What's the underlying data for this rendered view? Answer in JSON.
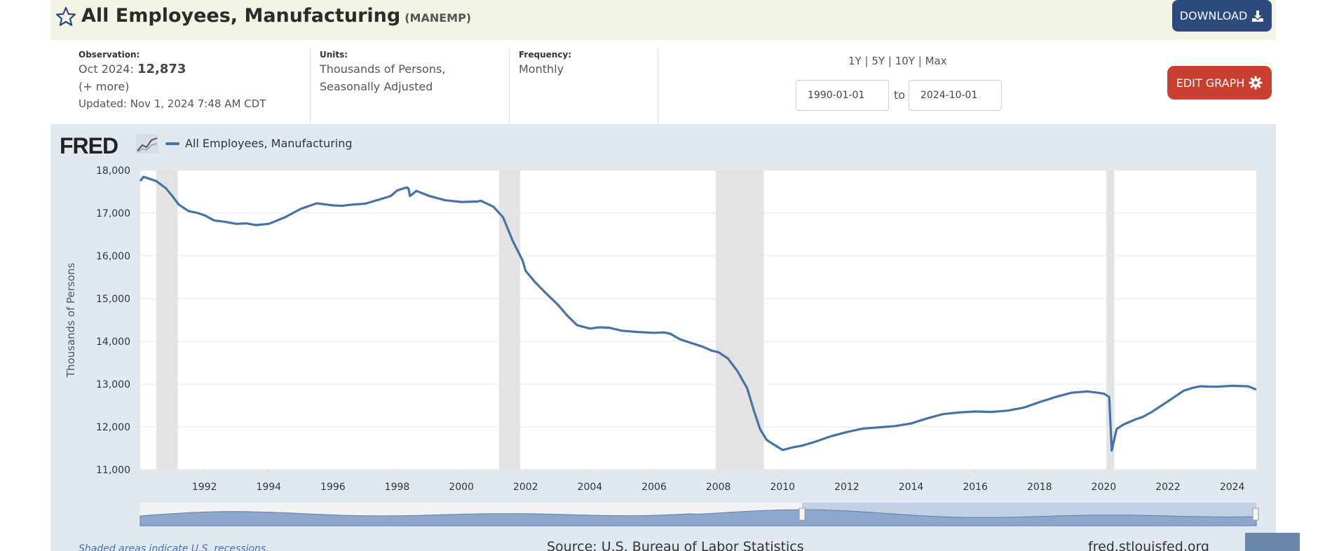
{
  "header": {
    "title": "All Employees, Manufacturing",
    "code": "(MANEMP)",
    "download_label": "DOWNLOAD"
  },
  "meta": {
    "observation_label": "Observation:",
    "observation_date": "Oct 2024:",
    "observation_value": "12,873",
    "more_label": "(+ more)",
    "updated_label": "Updated:",
    "updated_value": "Nov 1, 2024 7:48 AM CDT",
    "units_label": "Units:",
    "units_line1": "Thousands of Persons,",
    "units_line2": "Seasonally Adjusted",
    "frequency_label": "Frequency:",
    "frequency_value": "Monthly"
  },
  "controls": {
    "range_1y": "1Y",
    "range_5y": "5Y",
    "range_10y": "10Y",
    "range_max": "Max",
    "separator": "|",
    "start_date": "1990-01-01",
    "to_label": "to",
    "end_date": "2024-10-01",
    "edit_label": "EDIT GRAPH"
  },
  "panel": {
    "logo": "FRED",
    "legend_label": "All Employees, Manufacturing",
    "footnote": "Shaded areas indicate U.S. recessions.",
    "source": "Source: U.S. Bureau of Labor Statistics",
    "url": "fred.stlouisfed.org"
  },
  "colors": {
    "line": "#4572a7",
    "recession": "#e3e3e3",
    "panel_bg": "#e1e9f0",
    "download_bg": "#2c4a7c",
    "edit_bg": "#c94030",
    "title_bg": "#f4f4e4"
  },
  "icons": {
    "favorite": "star-outline-icon",
    "download": "download-tray-icon",
    "edit": "gear-icon",
    "logo_graph": "line-graph-icon"
  },
  "chart_data": {
    "type": "line",
    "ylabel": "Thousands of Persons",
    "xlim": [
      1990.0,
      2024.75
    ],
    "ylim": [
      11000,
      18000
    ],
    "yticks": [
      11000,
      12000,
      13000,
      14000,
      15000,
      16000,
      17000,
      18000
    ],
    "ytick_labels": [
      "11,000",
      "12,000",
      "13,000",
      "14,000",
      "15,000",
      "16,000",
      "17,000",
      "18,000"
    ],
    "xticks": [
      1992,
      1994,
      1996,
      1998,
      2000,
      2002,
      2004,
      2006,
      2008,
      2010,
      2012,
      2014,
      2016,
      2018,
      2020,
      2022,
      2024
    ],
    "grid": true,
    "legend": "top-left",
    "recessions": [
      [
        1990.5,
        1991.17
      ],
      [
        2001.17,
        2001.83
      ],
      [
        2007.92,
        2009.42
      ],
      [
        2020.08,
        2020.33
      ]
    ],
    "series": [
      {
        "name": "All Employees, Manufacturing",
        "x": [
          1990.0,
          1990.1,
          1990.5,
          1990.8,
          1991.0,
          1991.2,
          1991.5,
          1991.8,
          1992.0,
          1992.3,
          1992.6,
          1993.0,
          1993.3,
          1993.6,
          1994.0,
          1994.5,
          1995.0,
          1995.5,
          1995.8,
          1996.0,
          1996.3,
          1996.6,
          1997.0,
          1997.5,
          1997.8,
          1998.0,
          1998.3,
          1998.35,
          1998.4,
          1998.6,
          1999.0,
          1999.5,
          2000.0,
          2000.5,
          2000.6,
          2000.8,
          2001.0,
          2001.3,
          2001.6,
          2001.9,
          2002.0,
          2002.3,
          2002.6,
          2003.0,
          2003.3,
          2003.6,
          2004.0,
          2004.3,
          2004.6,
          2005.0,
          2005.5,
          2006.0,
          2006.3,
          2006.5,
          2006.8,
          2007.0,
          2007.5,
          2007.8,
          2008.0,
          2008.3,
          2008.6,
          2008.9,
          2009.1,
          2009.3,
          2009.5,
          2009.7,
          2010.0,
          2010.3,
          2010.6,
          2011.0,
          2011.5,
          2012.0,
          2012.5,
          2013.0,
          2013.5,
          2014.0,
          2014.5,
          2015.0,
          2015.5,
          2016.0,
          2016.5,
          2017.0,
          2017.5,
          2018.0,
          2018.5,
          2019.0,
          2019.5,
          2019.8,
          2020.0,
          2020.17,
          2020.25,
          2020.4,
          2020.6,
          2021.0,
          2021.2,
          2021.5,
          2022.0,
          2022.5,
          2022.8,
          2023.0,
          2023.5,
          2024.0,
          2024.5,
          2024.75
        ],
        "values": [
          17750,
          17850,
          17750,
          17580,
          17400,
          17200,
          17050,
          17000,
          16950,
          16830,
          16800,
          16750,
          16760,
          16720,
          16750,
          16900,
          17100,
          17230,
          17200,
          17180,
          17170,
          17200,
          17220,
          17330,
          17400,
          17530,
          17600,
          17580,
          17400,
          17520,
          17400,
          17300,
          17260,
          17270,
          17290,
          17220,
          17150,
          16900,
          16350,
          15900,
          15650,
          15380,
          15150,
          14860,
          14600,
          14380,
          14300,
          14330,
          14320,
          14250,
          14220,
          14200,
          14210,
          14180,
          14050,
          14000,
          13880,
          13780,
          13750,
          13600,
          13300,
          12900,
          12400,
          11950,
          11700,
          11600,
          11460,
          11520,
          11560,
          11650,
          11780,
          11880,
          11960,
          11990,
          12020,
          12080,
          12200,
          12300,
          12340,
          12360,
          12350,
          12380,
          12450,
          12580,
          12700,
          12800,
          12830,
          12800,
          12780,
          12700,
          11450,
          11950,
          12050,
          12180,
          12230,
          12350,
          12600,
          12850,
          12920,
          12950,
          12940,
          12960,
          12950,
          12873
        ]
      }
    ]
  }
}
